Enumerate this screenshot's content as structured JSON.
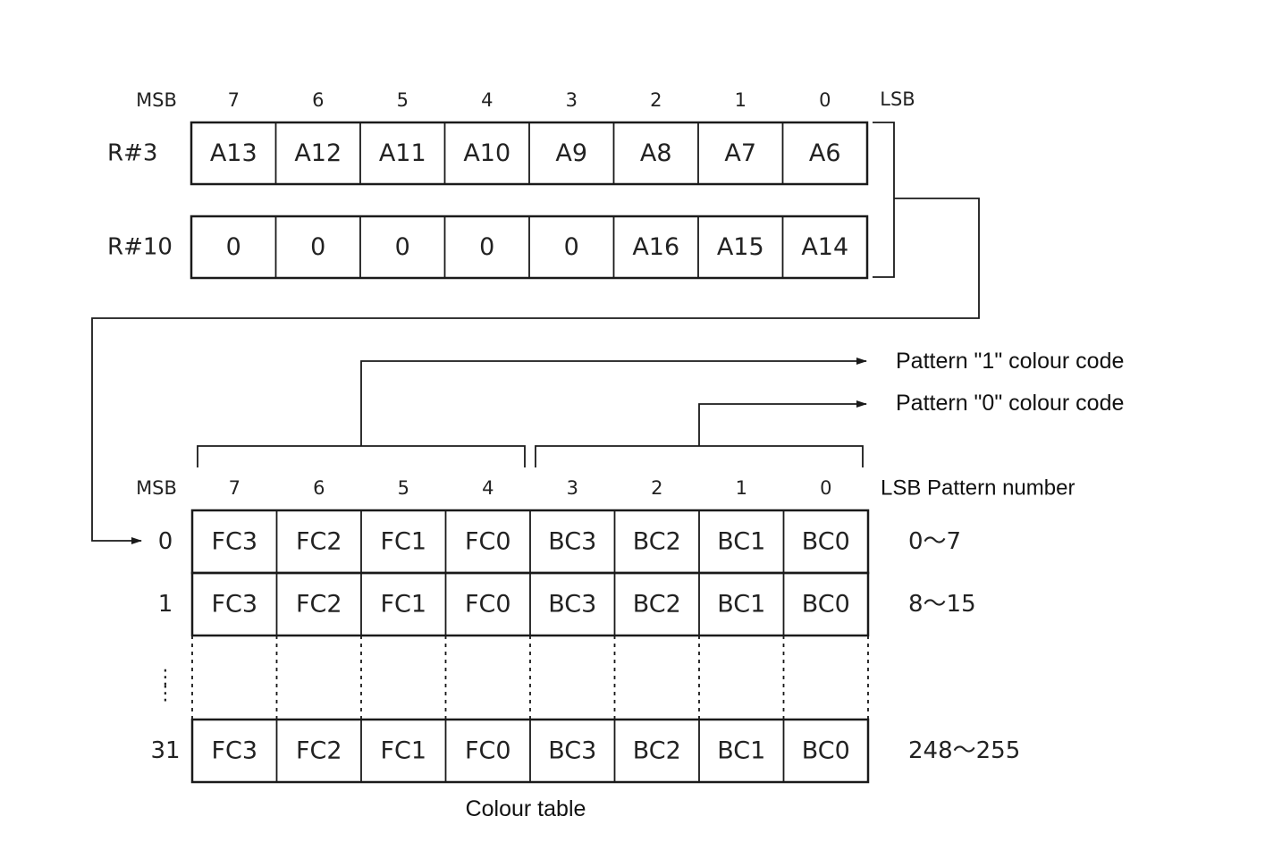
{
  "registers": {
    "msb_label": "MSB",
    "lsb_label": "LSB",
    "bit_numbers": [
      "7",
      "6",
      "5",
      "4",
      "3",
      "2",
      "1",
      "0"
    ],
    "rows": [
      {
        "name": "R#3",
        "cells": [
          "A13",
          "A12",
          "A11",
          "A10",
          "A9",
          "A8",
          "A7",
          "A6"
        ]
      },
      {
        "name": "R#10",
        "cells": [
          "0",
          "0",
          "0",
          "0",
          "0",
          "A16",
          "A15",
          "A14"
        ]
      }
    ]
  },
  "arrows": {
    "pattern1": "Pattern \"1\" colour code",
    "pattern0": "Pattern \"0\" colour code"
  },
  "colour_table": {
    "msb_label": "MSB",
    "lsb_label": "LSB Pattern number",
    "bit_numbers": [
      "7",
      "6",
      "5",
      "4",
      "3",
      "2",
      "1",
      "0"
    ],
    "rows": [
      {
        "index": "0",
        "cells": [
          "FC3",
          "FC2",
          "FC1",
          "FC0",
          "BC3",
          "BC2",
          "BC1",
          "BC0"
        ],
        "range": "0～7"
      },
      {
        "index": "1",
        "cells": [
          "FC3",
          "FC2",
          "FC1",
          "FC0",
          "BC3",
          "BC2",
          "BC1",
          "BC0"
        ],
        "range": "8～15"
      },
      {
        "index": "31",
        "cells": [
          "FC3",
          "FC2",
          "FC1",
          "FC0",
          "BC3",
          "BC2",
          "BC1",
          "BC0"
        ],
        "range": "248～255"
      }
    ],
    "caption": "Colour table"
  }
}
